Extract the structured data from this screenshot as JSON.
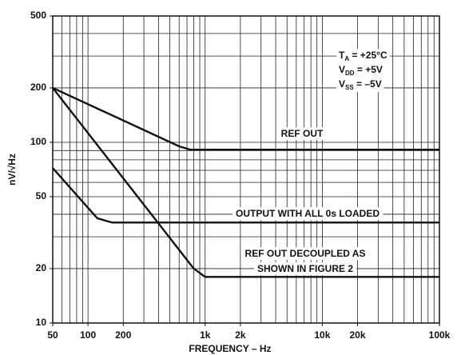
{
  "chart_data": {
    "type": "line",
    "xlabel": "FREQUENCY – Hz",
    "ylabel": "nV/√Hz",
    "xscale": "log",
    "yscale": "log",
    "grid": true,
    "xlim": [
      50,
      100000
    ],
    "ylim": [
      10,
      500
    ],
    "xticks": [
      50,
      100,
      200,
      {
        "value": 1000,
        "label": "1k"
      },
      {
        "value": 2000,
        "label": "2k"
      },
      {
        "value": 10000,
        "label": "10k"
      },
      {
        "value": 20000,
        "label": "20k"
      },
      {
        "value": 100000,
        "label": "100k"
      }
    ],
    "yticks": [
      10,
      20,
      50,
      100,
      200,
      500
    ],
    "xgrid": [
      50,
      60,
      70,
      80,
      90,
      100,
      200,
      300,
      400,
      500,
      600,
      700,
      800,
      900,
      1000,
      2000,
      3000,
      4000,
      5000,
      6000,
      7000,
      8000,
      9000,
      10000,
      20000,
      30000,
      40000,
      50000,
      60000,
      70000,
      80000,
      90000,
      100000
    ],
    "ygrid": [
      10,
      20,
      30,
      40,
      50,
      60,
      70,
      80,
      90,
      100,
      200,
      300,
      400,
      500
    ],
    "series": [
      {
        "color": "#111",
        "x": [
          50,
          600,
          750,
          100000
        ],
        "values": [
          200,
          95,
          91,
          91
        ]
      },
      {
        "color": "#111",
        "x": [
          50,
          120,
          160,
          100000
        ],
        "values": [
          72,
          38,
          36,
          36
        ]
      },
      {
        "color": "#111",
        "x": [
          50,
          800,
          1000,
          100000
        ],
        "values": [
          200,
          20,
          18,
          18
        ]
      }
    ],
    "curve_labels": [
      "REF OUT",
      "OUTPUT WITH  ALL 0s LOADED",
      "REF OUT DECOUPLED AS",
      "SHOWN IN FIGURE 2"
    ],
    "conditions": [
      {
        "main": "T",
        "sub": "A",
        "rest": " = +25°C"
      },
      {
        "main": "V",
        "sub": "DD",
        "rest": " = +5V"
      },
      {
        "main": "V",
        "sub": "SS",
        "rest": " = –5V"
      }
    ]
  }
}
